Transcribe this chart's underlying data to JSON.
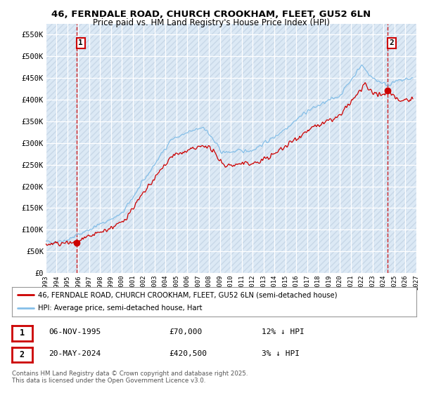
{
  "title_line1": "46, FERNDALE ROAD, CHURCH CROOKHAM, FLEET, GU52 6LN",
  "title_line2": "Price paid vs. HM Land Registry's House Price Index (HPI)",
  "ylim": [
    0,
    575000
  ],
  "yticks": [
    0,
    50000,
    100000,
    150000,
    200000,
    250000,
    300000,
    350000,
    400000,
    450000,
    500000,
    550000
  ],
  "ytick_labels": [
    "£0",
    "£50K",
    "£100K",
    "£150K",
    "£200K",
    "£250K",
    "£300K",
    "£350K",
    "£400K",
    "£450K",
    "£500K",
    "£550K"
  ],
  "x_start_year": 1993,
  "x_end_year": 2027,
  "xtick_years": [
    1993,
    1994,
    1995,
    1996,
    1997,
    1998,
    1999,
    2000,
    2001,
    2002,
    2003,
    2004,
    2005,
    2006,
    2007,
    2008,
    2009,
    2010,
    2011,
    2012,
    2013,
    2014,
    2015,
    2016,
    2017,
    2018,
    2019,
    2020,
    2021,
    2022,
    2023,
    2024,
    2025,
    2026,
    2027
  ],
  "hpi_color": "#85bfe8",
  "price_color": "#cc0000",
  "marker_color": "#cc0000",
  "annotation1_label": "1",
  "annotation1_year": 1995.85,
  "annotation1_value": 70000,
  "annotation2_label": "2",
  "annotation2_year": 2024.38,
  "annotation2_value": 420500,
  "legend_line1": "46, FERNDALE ROAD, CHURCH CROOKHAM, FLEET, GU52 6LN (semi-detached house)",
  "legend_line2": "HPI: Average price, semi-detached house, Hart",
  "table_row1_num": "1",
  "table_row1_date": "06-NOV-1995",
  "table_row1_price": "£70,000",
  "table_row1_hpi": "12% ↓ HPI",
  "table_row2_num": "2",
  "table_row2_date": "20-MAY-2024",
  "table_row2_price": "£420,500",
  "table_row2_hpi": "3% ↓ HPI",
  "footer": "Contains HM Land Registry data © Crown copyright and database right 2025.\nThis data is licensed under the Open Government Licence v3.0.",
  "bg_color": "#ffffff",
  "chart_bg": "#dce9f5",
  "hatch_color": "#c8d8e8"
}
